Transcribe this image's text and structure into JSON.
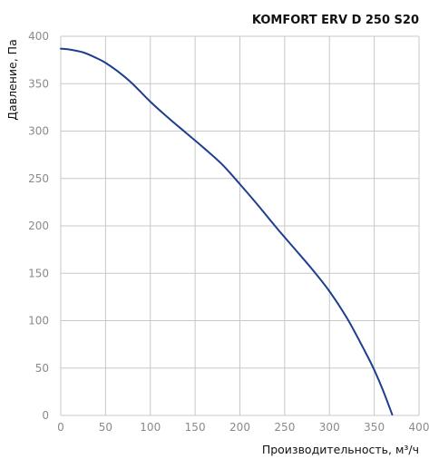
{
  "chart_data": {
    "type": "line",
    "title": "KOMFORT ERV D 250 S20",
    "xlabel": "Производительность, м³/ч",
    "ylabel": "Давление, Па",
    "xlim": [
      0,
      400
    ],
    "ylim": [
      0,
      400
    ],
    "x_ticks": [
      0,
      50,
      100,
      150,
      200,
      250,
      300,
      350,
      400
    ],
    "y_ticks": [
      0,
      50,
      100,
      150,
      200,
      250,
      300,
      350,
      400
    ],
    "grid": true,
    "series": [
      {
        "color": "#1f3e8f",
        "points": [
          [
            0,
            387
          ],
          [
            10,
            386
          ],
          [
            25,
            383
          ],
          [
            40,
            377
          ],
          [
            50,
            372
          ],
          [
            65,
            362
          ],
          [
            80,
            350
          ],
          [
            100,
            331
          ],
          [
            120,
            314
          ],
          [
            140,
            298
          ],
          [
            160,
            282
          ],
          [
            180,
            265
          ],
          [
            200,
            244
          ],
          [
            220,
            222
          ],
          [
            240,
            199
          ],
          [
            260,
            177
          ],
          [
            280,
            155
          ],
          [
            300,
            131
          ],
          [
            320,
            102
          ],
          [
            340,
            67
          ],
          [
            350,
            48
          ],
          [
            360,
            26
          ],
          [
            370,
            1
          ]
        ]
      }
    ],
    "colors": {
      "grid": "#c8c8c8",
      "line": "#1f3e8f",
      "tick_text": "#8a8a8a",
      "title_text": "#111111"
    }
  }
}
